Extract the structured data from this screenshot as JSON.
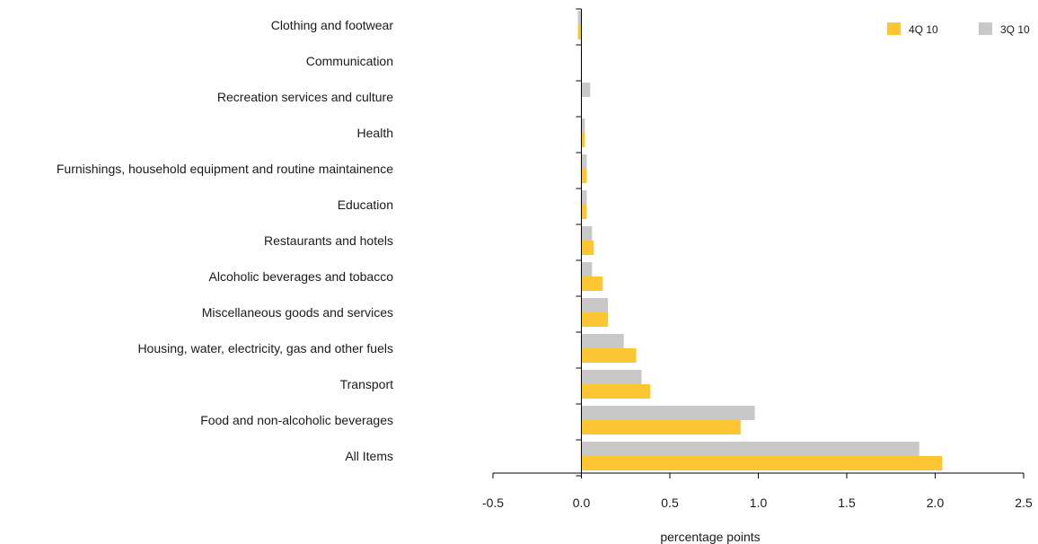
{
  "chart_data": {
    "type": "bar",
    "orientation": "horizontal",
    "categories": [
      "Clothing and footwear",
      "Communication",
      "Recreation services and culture",
      "Health",
      "Furnishings, household equipment and routine maintainence",
      "Education",
      "Restaurants and hotels",
      "Alcoholic beverages and tobacco",
      "Miscellaneous goods and services",
      "Housing, water, electricity, gas and other fuels",
      "Transport ",
      "Food and non-alcoholic beverages",
      "All Items"
    ],
    "series": [
      {
        "name": "4Q 10",
        "color": "#fcc633",
        "values": [
          -0.02,
          0.0,
          0.0,
          0.02,
          0.03,
          0.03,
          0.07,
          0.12,
          0.15,
          0.31,
          0.39,
          0.9,
          2.04
        ]
      },
      {
        "name": "3Q 10",
        "color": "#c8c8c8",
        "values": [
          -0.02,
          0.0,
          0.05,
          0.02,
          0.03,
          0.03,
          0.06,
          0.06,
          0.15,
          0.24,
          0.34,
          0.98,
          1.91
        ]
      }
    ],
    "xlabel": "percentage points",
    "xlim": [
      -0.5,
      2.5
    ],
    "xticks": [
      "-0.5",
      "0.0",
      "0.5",
      "1.0",
      "1.5",
      "2.0",
      "2.5"
    ],
    "grid": false,
    "legend_position": "top-right"
  }
}
